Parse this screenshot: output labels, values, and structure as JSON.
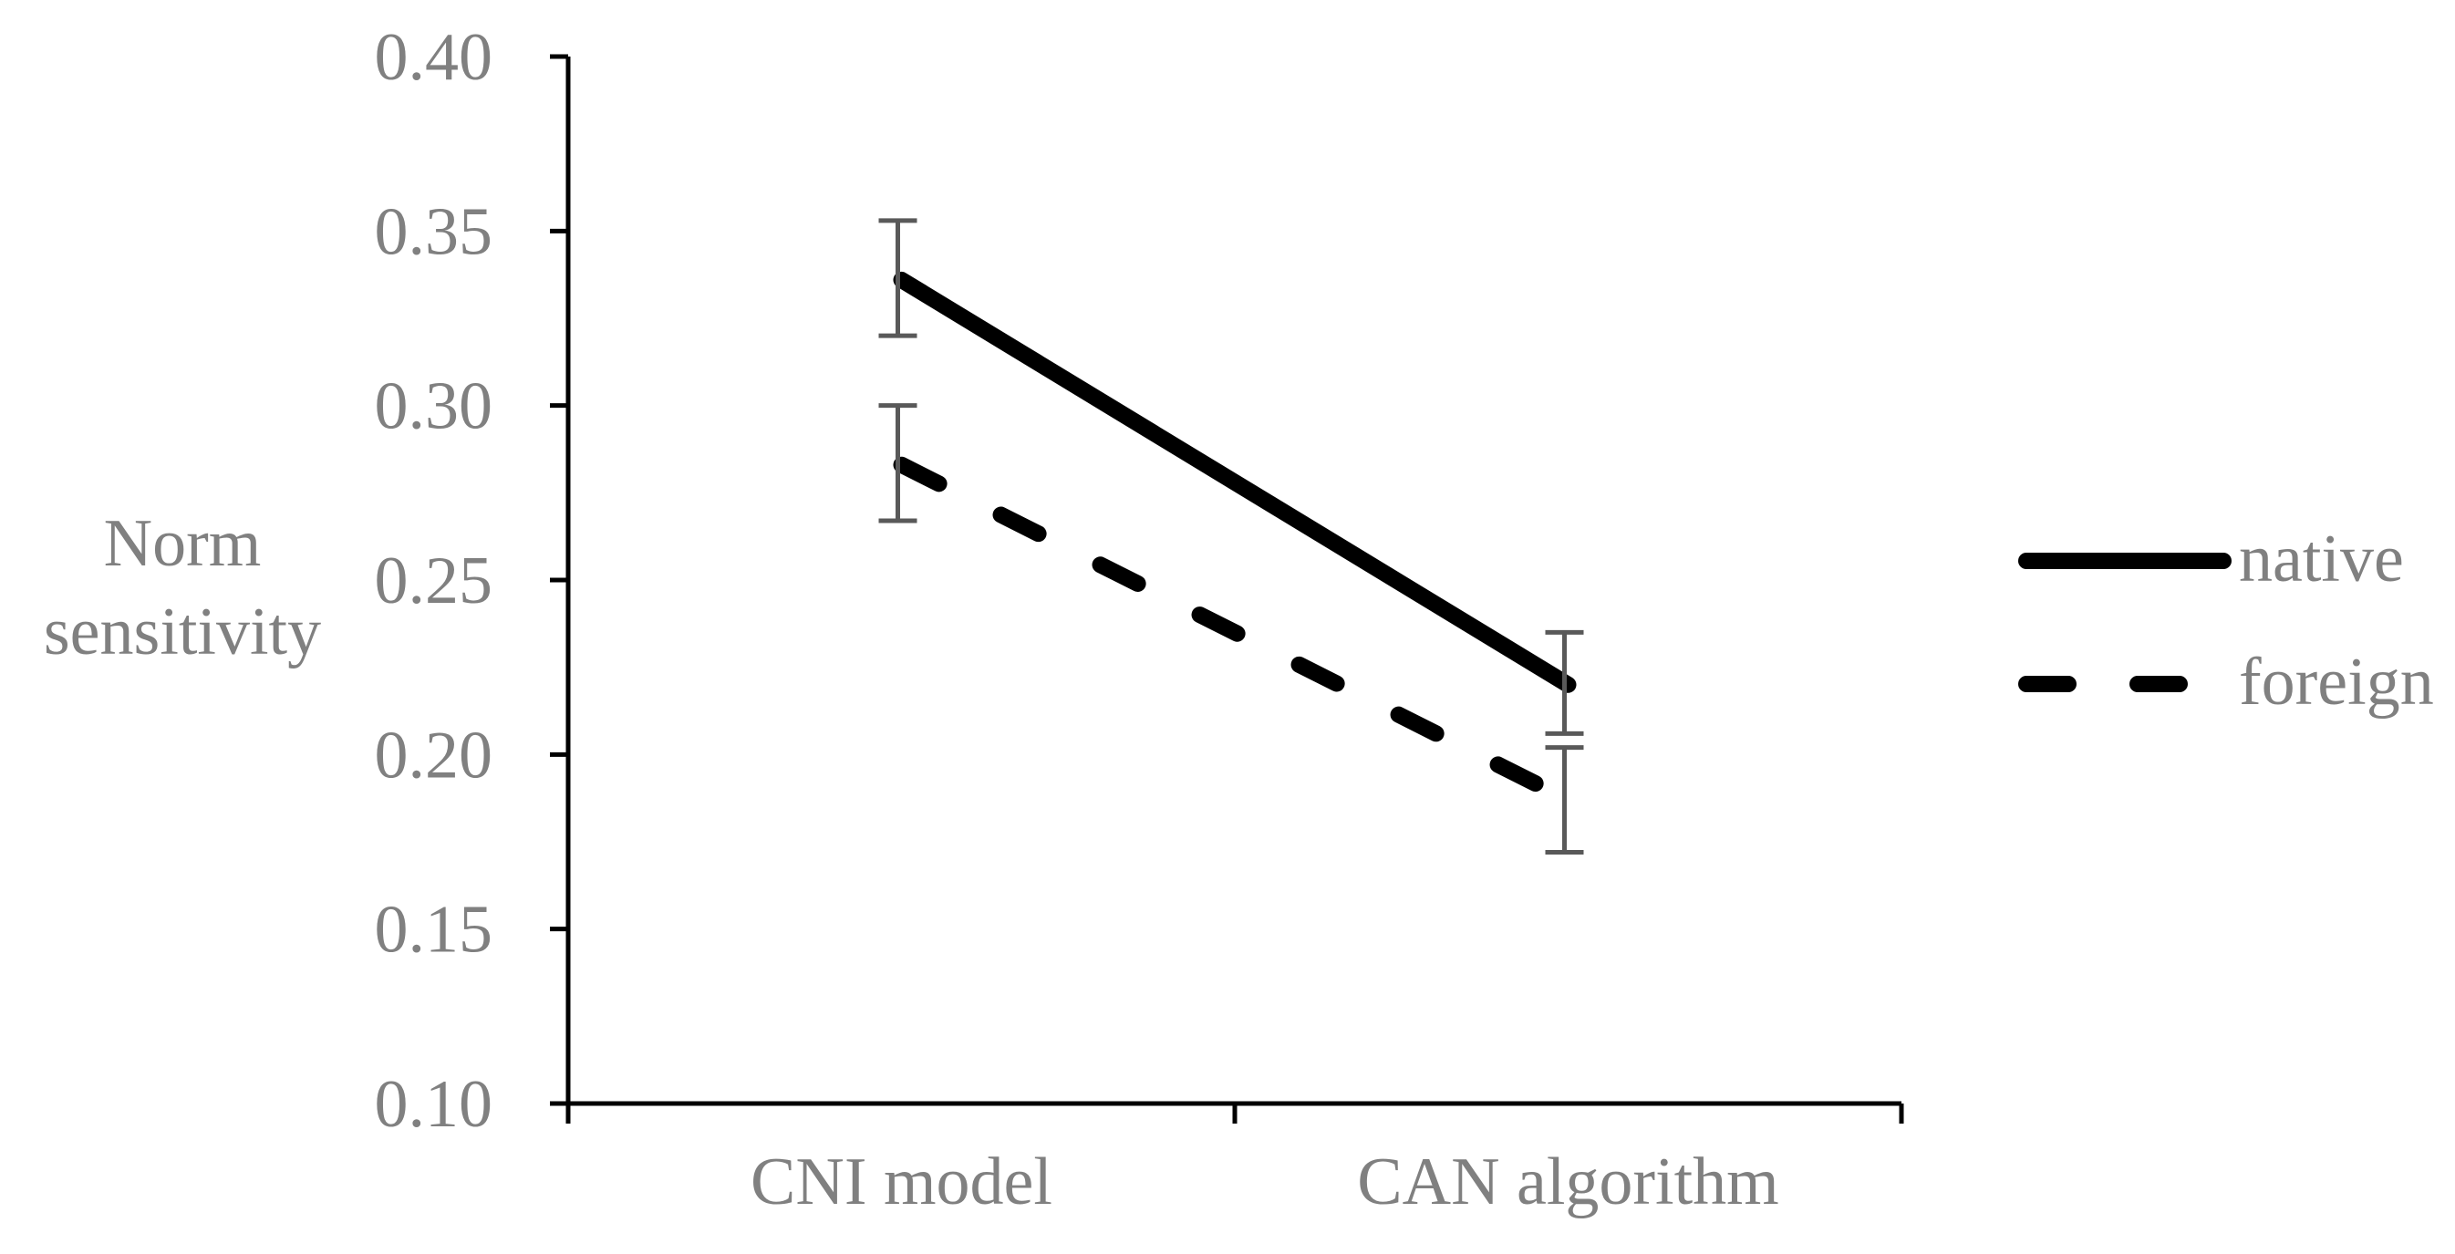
{
  "chart_data": {
    "type": "line",
    "title": "",
    "xlabel": "",
    "ylabel_lines": [
      "Norm",
      "sensitivity"
    ],
    "categories": [
      "CNI model",
      "CAN algorithm"
    ],
    "y_ticks": [
      "0.10",
      "0.15",
      "0.20",
      "0.25",
      "0.30",
      "0.35",
      "0.40"
    ],
    "ylim": [
      0.1,
      0.4
    ],
    "grid": false,
    "legend_position": "right",
    "series": [
      {
        "name": "native",
        "style": "solid",
        "color": "#000000",
        "values": [
          0.336,
          0.22
        ],
        "error_low": [
          0.32,
          0.206
        ],
        "error_high": [
          0.353,
          0.235
        ]
      },
      {
        "name": "foreign",
        "style": "dashed",
        "color": "#000000",
        "values": [
          0.283,
          0.187
        ],
        "error_low": [
          0.267,
          0.172
        ],
        "error_high": [
          0.3,
          0.202
        ]
      }
    ],
    "colors": {
      "axis": "#000000",
      "text": "#808080",
      "error_bar": "#595959"
    }
  }
}
